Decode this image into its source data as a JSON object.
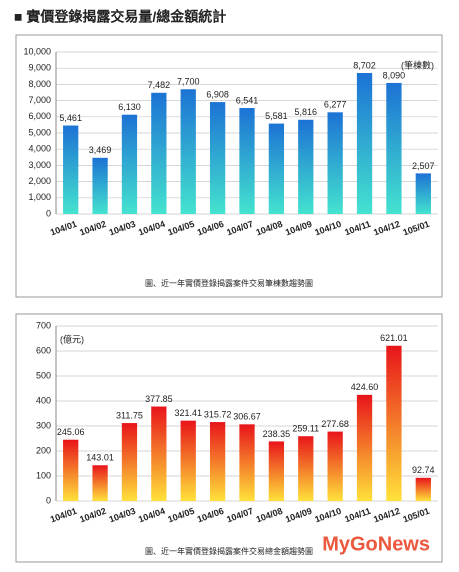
{
  "header": {
    "title": "■  實價登錄揭露交易量/總金額統計"
  },
  "watermark": "MyGoNews",
  "chart_data": [
    {
      "type": "bar",
      "unit_label": "(筆棟數)",
      "caption": "圖、近一年實價登錄揭露案件交易筆棟數趨勢圖",
      "categories": [
        "104/01",
        "104/02",
        "104/03",
        "104/04",
        "104/05",
        "104/06",
        "104/07",
        "104/08",
        "104/09",
        "104/10",
        "104/11",
        "104/12",
        "105/01"
      ],
      "values": [
        5461,
        3469,
        6130,
        7482,
        7700,
        6908,
        6541,
        5581,
        5816,
        6277,
        8702,
        8090,
        2507
      ],
      "value_labels": [
        "5,461",
        "3,469",
        "6,130",
        "7,482",
        "7,700",
        "6,908",
        "6,541",
        "5,581",
        "5,816",
        "6,277",
        "8,702",
        "8,090",
        "2,507"
      ],
      "color": "#1c72d4",
      "gradient_color": "#44e3cf",
      "ylim": [
        0,
        10000
      ],
      "yticks": [
        0,
        {
          "value": 1000,
          "label": "1,000"
        },
        {
          "value": 2000,
          "label": "2,000"
        },
        {
          "value": 3000,
          "label": "3,000"
        },
        {
          "value": 4000,
          "label": "4,000"
        },
        {
          "value": 5000,
          "label": "5,000"
        },
        {
          "value": 6000,
          "label": "6,000"
        },
        {
          "value": 7000,
          "label": "7,000"
        },
        {
          "value": 8000,
          "label": "8,000"
        },
        {
          "value": 9000,
          "label": "9,000"
        },
        {
          "value": 10000,
          "label": "10,000"
        }
      ],
      "grid": true
    },
    {
      "type": "bar",
      "unit_label": "(億元)",
      "caption": "圖、近一年實價登錄揭露案件交易總金額趨勢圖",
      "categories": [
        "104/01",
        "104/02",
        "104/03",
        "104/04",
        "104/05",
        "104/06",
        "104/07",
        "104/08",
        "104/09",
        "104/10",
        "104/11",
        "104/12",
        "105/01"
      ],
      "values": [
        245.06,
        143.01,
        311.75,
        377.85,
        321.41,
        315.72,
        306.67,
        238.35,
        259.11,
        277.68,
        424.6,
        621.01,
        92.74
      ],
      "value_labels": [
        "245.06",
        "143.01",
        "311.75",
        "377.85",
        "321.41",
        "315.72",
        "306.67",
        "238.35",
        "259.11",
        "277.68",
        "424.60",
        "621.01",
        "92.74"
      ],
      "color": "#e8141a",
      "gradient_color": "#ffe23a",
      "ylim": [
        0,
        700
      ],
      "yticks": [
        0,
        100,
        200,
        300,
        400,
        500,
        600,
        700
      ],
      "grid": true
    }
  ]
}
